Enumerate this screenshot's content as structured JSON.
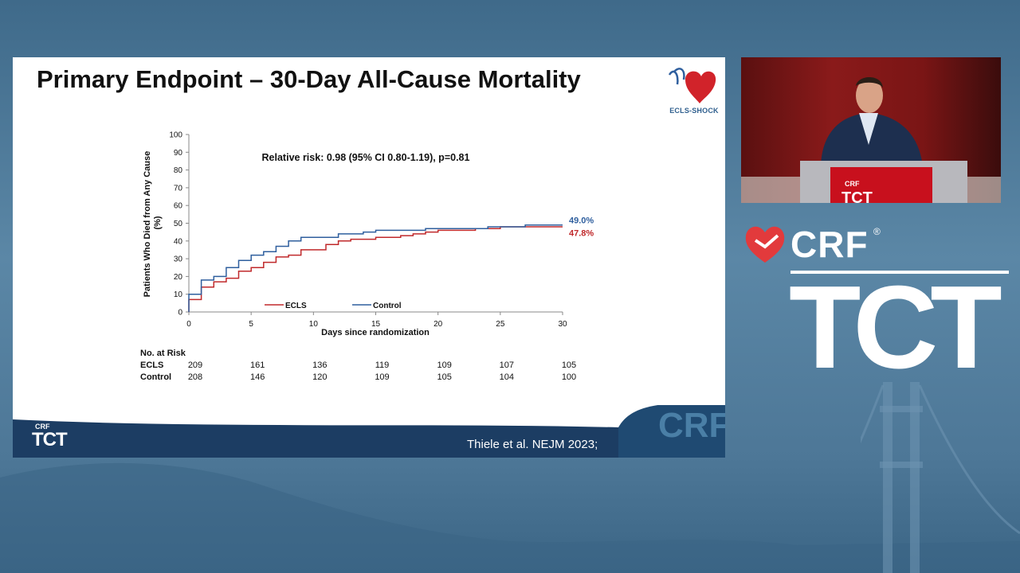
{
  "slide": {
    "title": "Primary Endpoint – 30-Day All-Cause Mortality",
    "trial_logo_text": "ECLS-SHOCK",
    "citation": "Thiele et al. NEJM 2023;",
    "footer_logo": {
      "crf": "CRF",
      "tct": "TCT"
    },
    "footer_watermark": "CRF"
  },
  "chart_data": {
    "type": "line",
    "step": true,
    "annotation": "Relative risk: 0.98 (95% CI 0.80-1.19), p=0.81",
    "xlabel": "Days since randomization",
    "ylabel": "Patients Who Died from Any Cause (%)",
    "xlim": [
      0,
      30
    ],
    "ylim": [
      0,
      100
    ],
    "x_ticks": [
      0,
      5,
      10,
      15,
      20,
      25,
      30
    ],
    "y_ticks": [
      0,
      10,
      20,
      30,
      40,
      50,
      60,
      70,
      80,
      90,
      100
    ],
    "grid": false,
    "legend_position": "bottom-center",
    "series": [
      {
        "name": "ECLS",
        "color": "#c0292b",
        "end_label": "47.8%",
        "points": [
          [
            0,
            0
          ],
          [
            0,
            7
          ],
          [
            1,
            7
          ],
          [
            1,
            14
          ],
          [
            2,
            14
          ],
          [
            2,
            17
          ],
          [
            3,
            17
          ],
          [
            3,
            19
          ],
          [
            4,
            19
          ],
          [
            4,
            23
          ],
          [
            5,
            23
          ],
          [
            5,
            25
          ],
          [
            6,
            25
          ],
          [
            6,
            28
          ],
          [
            7,
            28
          ],
          [
            7,
            31
          ],
          [
            8,
            31
          ],
          [
            8,
            32
          ],
          [
            9,
            32
          ],
          [
            9,
            35
          ],
          [
            11,
            35
          ],
          [
            11,
            38
          ],
          [
            12,
            38
          ],
          [
            12,
            40
          ],
          [
            13,
            40
          ],
          [
            13,
            41
          ],
          [
            15,
            41
          ],
          [
            15,
            42
          ],
          [
            17,
            42
          ],
          [
            17,
            43
          ],
          [
            18,
            43
          ],
          [
            18,
            44
          ],
          [
            19,
            44
          ],
          [
            19,
            45
          ],
          [
            20,
            45
          ],
          [
            20,
            46
          ],
          [
            23,
            46
          ],
          [
            23,
            47
          ],
          [
            25,
            47
          ],
          [
            25,
            48
          ],
          [
            30,
            48
          ]
        ]
      },
      {
        "name": "Control",
        "color": "#2f5f9e",
        "end_label": "49.0%",
        "points": [
          [
            0,
            0
          ],
          [
            0,
            10
          ],
          [
            1,
            10
          ],
          [
            1,
            18
          ],
          [
            2,
            18
          ],
          [
            2,
            20
          ],
          [
            3,
            20
          ],
          [
            3,
            25
          ],
          [
            4,
            25
          ],
          [
            4,
            29
          ],
          [
            5,
            29
          ],
          [
            5,
            32
          ],
          [
            6,
            32
          ],
          [
            6,
            34
          ],
          [
            7,
            34
          ],
          [
            7,
            37
          ],
          [
            8,
            37
          ],
          [
            8,
            40
          ],
          [
            9,
            40
          ],
          [
            9,
            42
          ],
          [
            12,
            42
          ],
          [
            12,
            44
          ],
          [
            14,
            44
          ],
          [
            14,
            45
          ],
          [
            15,
            45
          ],
          [
            15,
            46
          ],
          [
            19,
            46
          ],
          [
            19,
            47
          ],
          [
            24,
            47
          ],
          [
            24,
            48
          ],
          [
            27,
            48
          ],
          [
            27,
            49
          ],
          [
            30,
            49
          ]
        ]
      }
    ],
    "risk_table": {
      "header": "No. at Risk",
      "times": [
        0,
        5,
        10,
        15,
        20,
        25,
        30
      ],
      "rows": [
        {
          "label": "ECLS",
          "values": [
            209,
            161,
            136,
            119,
            109,
            107,
            105
          ]
        },
        {
          "label": "Control",
          "values": [
            208,
            146,
            120,
            109,
            105,
            104,
            100
          ]
        }
      ]
    }
  },
  "video": {
    "podium_crf": "CRF",
    "podium_tct": "TCT"
  },
  "brand": {
    "crf": "CRF",
    "registered": "®",
    "tct": "TCT"
  },
  "colors": {
    "ecls": "#c0292b",
    "control": "#2f5f9e",
    "background": "#4d7797",
    "footer_dark": "#1c3d63"
  }
}
